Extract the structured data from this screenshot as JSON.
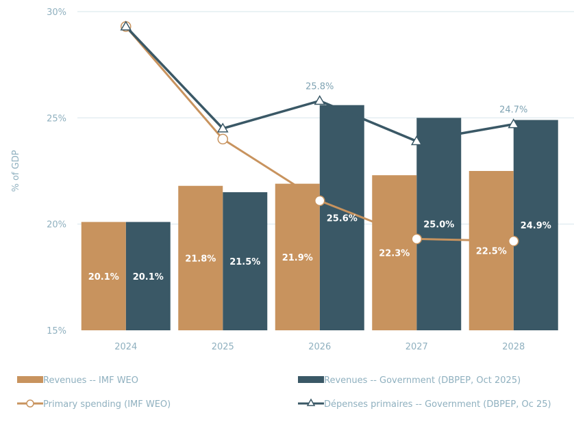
{
  "chart_data": {
    "type": "bar",
    "title": "",
    "xlabel": "",
    "ylabel": "% of GDP",
    "ylim": [
      15,
      30
    ],
    "yticks": [
      "15%",
      "20%",
      "25%",
      "30%"
    ],
    "ytick_values": [
      15,
      20,
      25,
      30
    ],
    "grid": true,
    "legend_placement": "bottom",
    "categories": [
      "2024",
      "2025",
      "2026",
      "2027",
      "2028"
    ],
    "series": [
      {
        "name": "Revenues  -- IMF WEO",
        "kind": "bar",
        "color": "#c8935e",
        "values": [
          20.1,
          21.8,
          21.9,
          22.3,
          22.5
        ],
        "labels": [
          "20.1%",
          "21.8%",
          "21.9%",
          "22.3%",
          "22.5%"
        ]
      },
      {
        "name": "Revenues -- Government (DBPEP, Oct 2025)",
        "kind": "bar",
        "color": "#3a5866",
        "values": [
          20.1,
          21.5,
          25.6,
          25.0,
          24.9
        ],
        "labels": [
          "20.1%",
          "21.5%",
          "25.6%",
          "25.0%",
          "24.9%"
        ]
      },
      {
        "name": "Primary spending (IMF WEO)",
        "kind": "line",
        "marker": "circle",
        "color": "#c8935e",
        "values": [
          29.3,
          24.0,
          21.1,
          19.3,
          19.2
        ]
      },
      {
        "name": "Dépenses primaires -- Government (DBPEP, Oc 25)",
        "kind": "line",
        "marker": "triangle",
        "color": "#3a5866",
        "values": [
          29.3,
          24.5,
          25.8,
          23.9,
          24.7
        ],
        "labels": [
          "",
          "",
          "25.8%",
          "",
          "24.7%"
        ]
      }
    ]
  }
}
